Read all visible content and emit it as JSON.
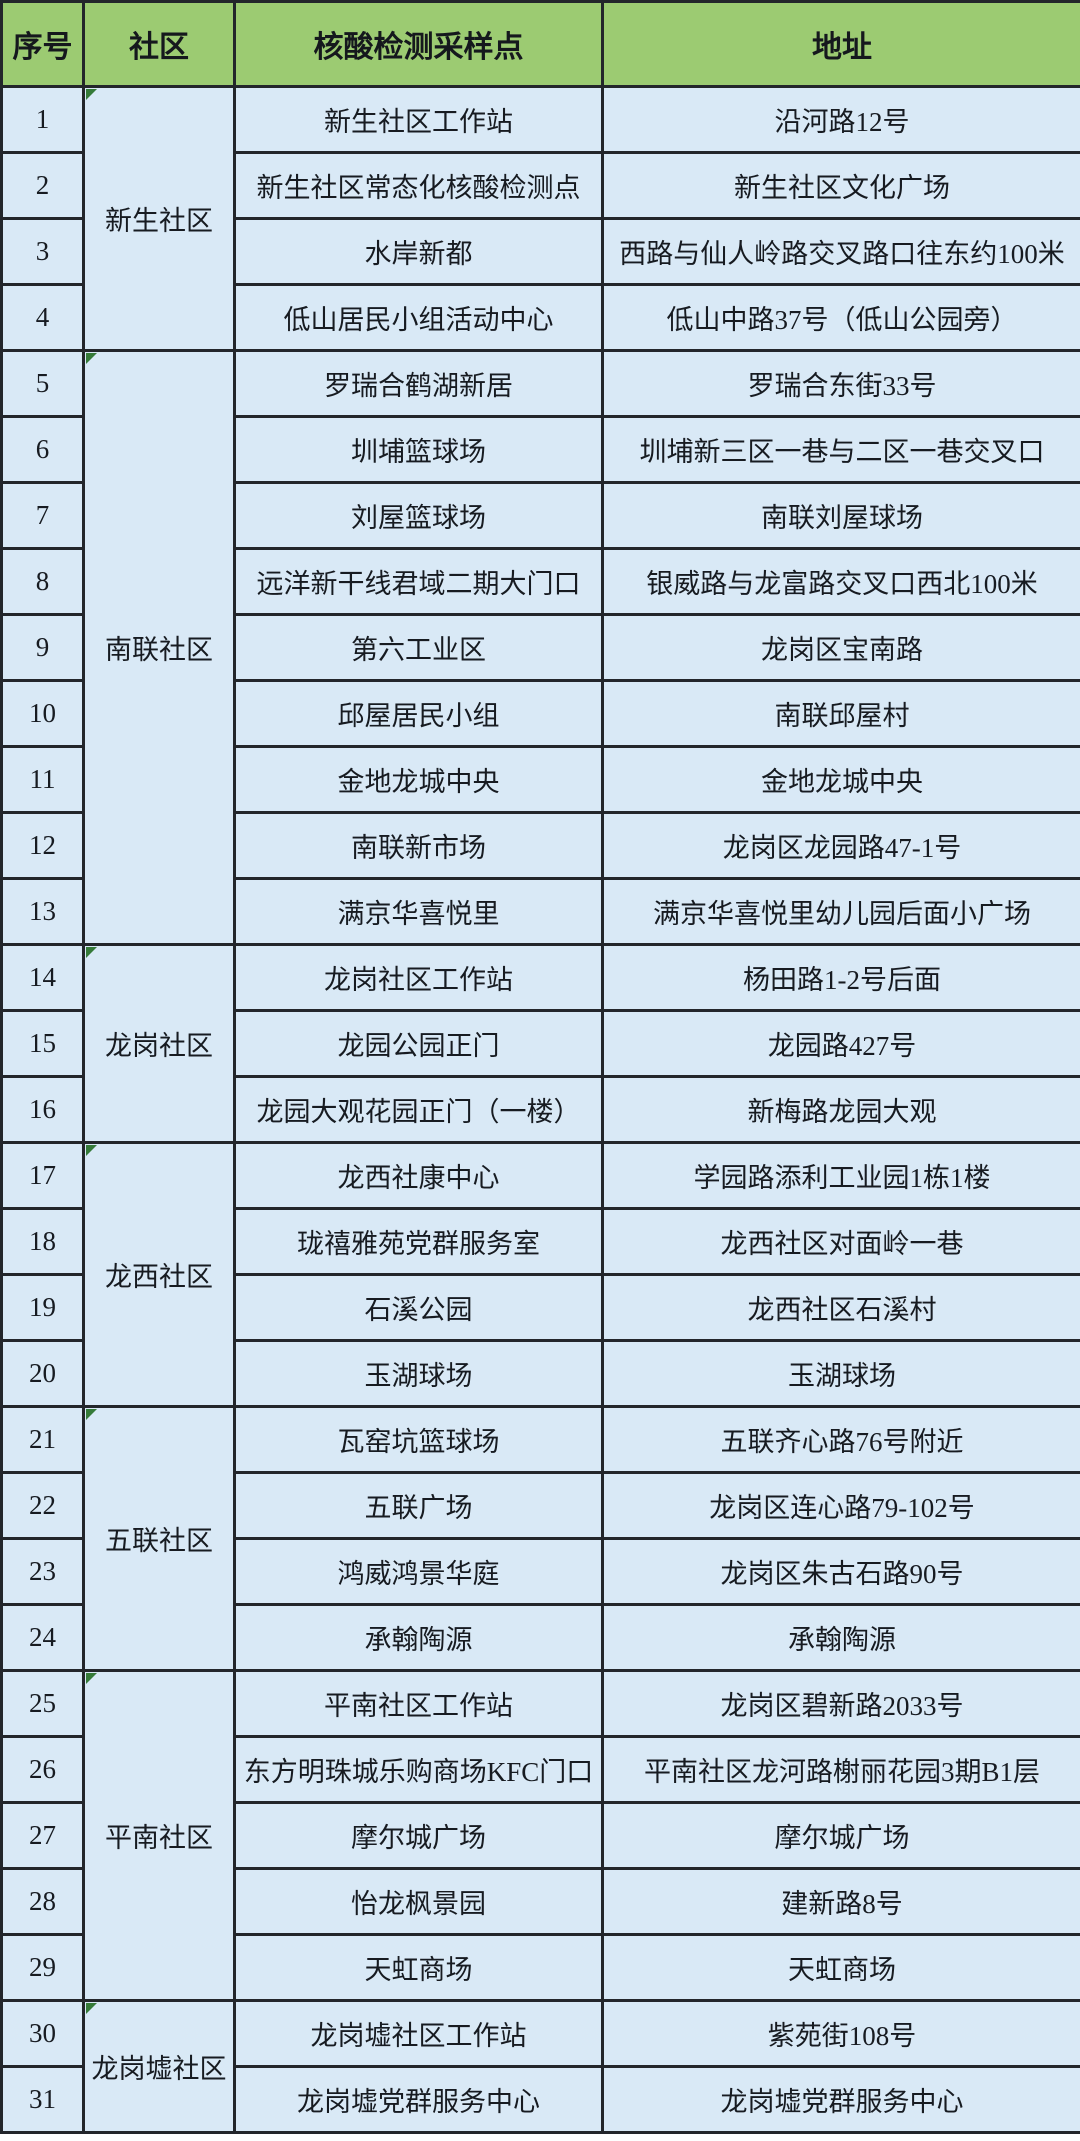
{
  "table": {
    "headers": [
      "序号",
      "社区",
      "核酸检测采样点",
      "地址"
    ],
    "colors": {
      "header_bg": "#9ccb72",
      "row_bg": "#d9e9f6",
      "border": "#23262b",
      "text": "#171b21"
    },
    "groups": [
      {
        "community": "新生社区",
        "rows": [
          {
            "no": "1",
            "site": "新生社区工作站",
            "address": "沿河路12号"
          },
          {
            "no": "2",
            "site": "新生社区常态化核酸检测点",
            "address": "新生社区文化广场"
          },
          {
            "no": "3",
            "site": "水岸新都",
            "address": "西路与仙人岭路交叉路口往东约100米"
          },
          {
            "no": "4",
            "site": "低山居民小组活动中心",
            "address": "低山中路37号（低山公园旁）"
          }
        ]
      },
      {
        "community": "南联社区",
        "rows": [
          {
            "no": "5",
            "site": "罗瑞合鹤湖新居",
            "address": "罗瑞合东街33号"
          },
          {
            "no": "6",
            "site": "圳埔篮球场",
            "address": "圳埔新三区一巷与二区一巷交叉口"
          },
          {
            "no": "7",
            "site": "刘屋篮球场",
            "address": "南联刘屋球场"
          },
          {
            "no": "8",
            "site": "远洋新干线君域二期大门口",
            "address": "银威路与龙富路交叉口西北100米"
          },
          {
            "no": "9",
            "site": "第六工业区",
            "address": "龙岗区宝南路"
          },
          {
            "no": "10",
            "site": "邱屋居民小组",
            "address": "南联邱屋村"
          },
          {
            "no": "11",
            "site": "金地龙城中央",
            "address": "金地龙城中央"
          },
          {
            "no": "12",
            "site": "南联新市场",
            "address": "龙岗区龙园路47-1号"
          },
          {
            "no": "13",
            "site": "满京华喜悦里",
            "address": "满京华喜悦里幼儿园后面小广场"
          }
        ]
      },
      {
        "community": "龙岗社区",
        "rows": [
          {
            "no": "14",
            "site": "龙岗社区工作站",
            "address": "杨田路1-2号后面"
          },
          {
            "no": "15",
            "site": "龙园公园正门",
            "address": "龙园路427号"
          },
          {
            "no": "16",
            "site": "龙园大观花园正门（一楼）",
            "address": "新梅路龙园大观"
          }
        ]
      },
      {
        "community": "龙西社区",
        "rows": [
          {
            "no": "17",
            "site": "龙西社康中心",
            "address": "学园路添利工业园1栋1楼"
          },
          {
            "no": "18",
            "site": "珑禧雅苑党群服务室",
            "address": "龙西社区对面岭一巷"
          },
          {
            "no": "19",
            "site": "石溪公园",
            "address": "龙西社区石溪村"
          },
          {
            "no": "20",
            "site": "玉湖球场",
            "address": "玉湖球场"
          }
        ]
      },
      {
        "community": "五联社区",
        "rows": [
          {
            "no": "21",
            "site": "瓦窑坑篮球场",
            "address": "五联齐心路76号附近"
          },
          {
            "no": "22",
            "site": "五联广场",
            "address": "龙岗区连心路79-102号"
          },
          {
            "no": "23",
            "site": "鸿威鸿景华庭",
            "address": "龙岗区朱古石路90号"
          },
          {
            "no": "24",
            "site": "承翰陶源",
            "address": "承翰陶源"
          }
        ]
      },
      {
        "community": "平南社区",
        "rows": [
          {
            "no": "25",
            "site": "平南社区工作站",
            "address": "龙岗区碧新路2033号"
          },
          {
            "no": "26",
            "site": "东方明珠城乐购商场KFC门口",
            "address": "平南社区龙河路榭丽花园3期B1层"
          },
          {
            "no": "27",
            "site": "摩尔城广场",
            "address": "摩尔城广场"
          },
          {
            "no": "28",
            "site": "怡龙枫景园",
            "address": "建新路8号"
          },
          {
            "no": "29",
            "site": "天虹商场",
            "address": "天虹商场"
          }
        ]
      },
      {
        "community": "龙岗墟社区",
        "rows": [
          {
            "no": "30",
            "site": "龙岗墟社区工作站",
            "address": "紫苑街108号"
          },
          {
            "no": "31",
            "site": "龙岗墟党群服务中心",
            "address": "龙岗墟党群服务中心"
          }
        ]
      }
    ]
  }
}
